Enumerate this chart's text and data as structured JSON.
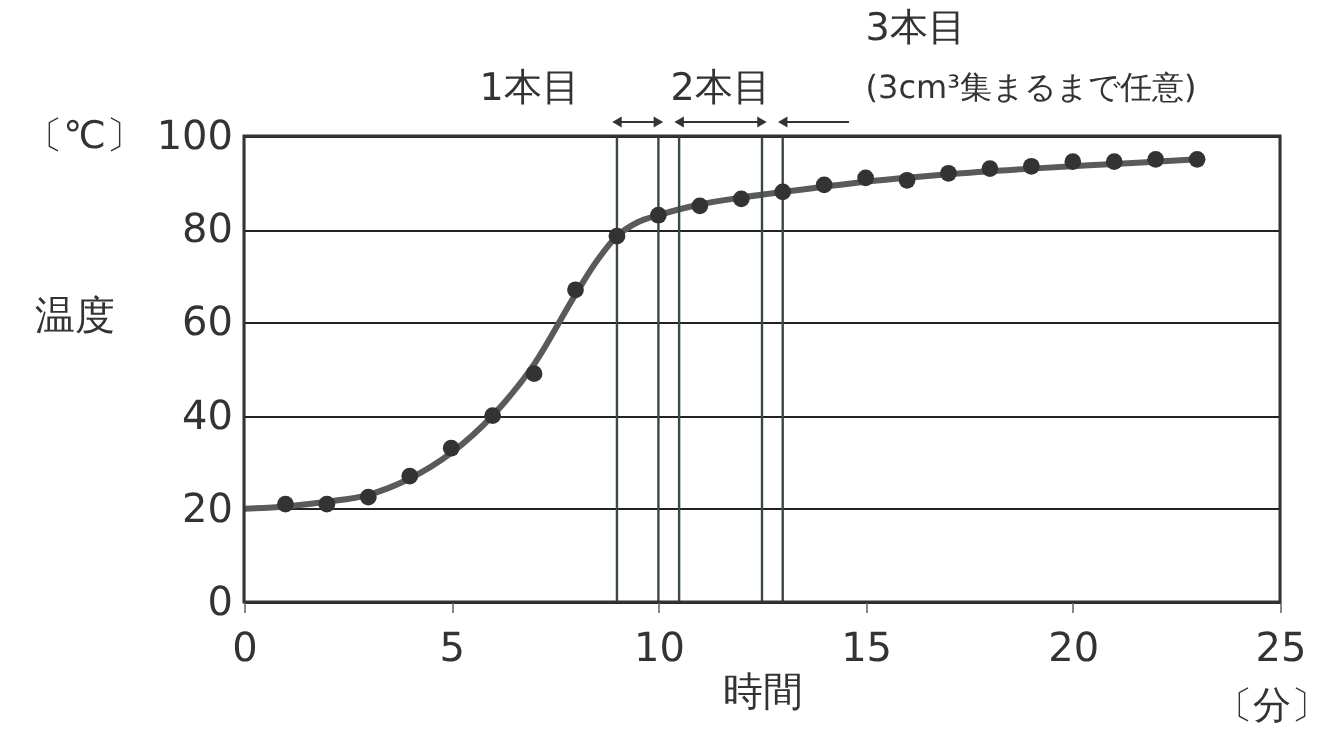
{
  "chart_data": {
    "type": "scatter",
    "xlabel": "時間",
    "ylabel": "温度",
    "annotations": [
      "1本目",
      "2本目",
      "3本目",
      "(3cm³集まるまで任意)",
      "〔℃〕",
      "〔分〕"
    ],
    "x": [
      1,
      2,
      3,
      4,
      5,
      6,
      7,
      8,
      9,
      10,
      11,
      12,
      13,
      14,
      15,
      16,
      17,
      18,
      19,
      20,
      21,
      22,
      23
    ],
    "series": [
      {
        "color": "#333333",
        "marker": "circle",
        "values": [
          21,
          21,
          22.5,
          27,
          33,
          40,
          49,
          67,
          78.5,
          83,
          85,
          86.5,
          88,
          89.5,
          91,
          90.5,
          92,
          93,
          93.5,
          94.5,
          94.5,
          95,
          95
        ]
      },
      {
        "type": "line",
        "color": "#5a5a5a",
        "marker": "none",
        "x": [
          0,
          1,
          2,
          3,
          4,
          5,
          6,
          7,
          8,
          8.5,
          9,
          9.5,
          10,
          11,
          12,
          13,
          15,
          17,
          19,
          21,
          23
        ],
        "values": [
          20,
          20.5,
          21.5,
          23,
          26.5,
          32,
          40,
          51,
          66,
          73,
          78.5,
          81.5,
          83,
          85.3,
          86.8,
          88,
          90.2,
          91.8,
          93,
          94,
          95
        ]
      }
    ],
    "ref_lines": [
      {
        "axis": "x",
        "value": 9,
        "color": "#3a4a40"
      },
      {
        "axis": "x",
        "value": 10,
        "color": "#3a4a40"
      },
      {
        "axis": "x",
        "value": 10.5,
        "color": "#3a4a40"
      },
      {
        "axis": "x",
        "value": 12.5,
        "color": "#3a4a40"
      },
      {
        "axis": "x",
        "value": 13,
        "color": "#3a4a40"
      }
    ],
    "xlim": [
      0,
      25
    ],
    "xticks": [
      0,
      5,
      10,
      15,
      20,
      25
    ],
    "ylim": [
      0,
      100
    ],
    "yticks": [
      0,
      20,
      40,
      60,
      80,
      100
    ],
    "grid": "y"
  }
}
